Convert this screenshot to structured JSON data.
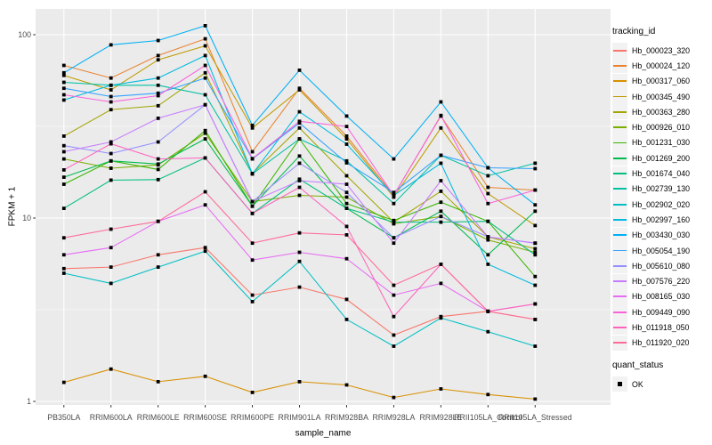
{
  "y_axis": {
    "label": "FPKM + 1",
    "ticks": [
      100,
      10,
      1
    ]
  },
  "x_axis": {
    "label": "sample_name",
    "categories": [
      "PB350LA",
      "RRIM600LA",
      "RRIM600LE",
      "RRIM600SE",
      "RRIM600PE",
      "RRIM901LA",
      "RRIM928BA",
      "RRIM928LA",
      "RRIM928LE",
      "RRII105LA_Control",
      "RRII105LA_Stressed"
    ]
  },
  "legend": {
    "tracking_title": "tracking_id",
    "quant_title": "quant_status",
    "quant_ok_label": "OK"
  },
  "colors": {
    "panel_bg": "#EBEBEB",
    "grid_major": "#FFFFFF",
    "grid_minor": "#F7F7F7",
    "axis_text": "#4D4D4D",
    "tick_mark": "#333333",
    "point": "#000000",
    "legend_key_bg": "#F2F2F2"
  },
  "chart_data": {
    "type": "line",
    "yscale": "log10",
    "ylim": [
      0.95,
      138
    ],
    "grid": true,
    "legend_position": "right",
    "point_shape": "square",
    "quant_status": "OK",
    "x": [
      "PB350LA",
      "RRIM600LA",
      "RRIM600LE",
      "RRIM600SE",
      "RRIM600PE",
      "RRIM901LA",
      "RRIM928BA",
      "RRIM928LA",
      "RRIM928LE",
      "RRII105LA_Control",
      "RRII105LA_Stressed"
    ],
    "series": [
      {
        "name": "Hb_000023_320",
        "color": "#F8766D",
        "values": [
          5.3,
          5.4,
          6.3,
          6.9,
          3.8,
          4.2,
          3.6,
          2.3,
          2.9,
          3.1,
          2.8
        ]
      },
      {
        "name": "Hb_000024_120",
        "color": "#EA8331",
        "values": [
          68,
          58,
          77,
          95,
          23,
          51,
          28,
          13.3,
          36,
          14.7,
          14.2
        ]
      },
      {
        "name": "Hb_000317_060",
        "color": "#D89000",
        "values": [
          1.27,
          1.5,
          1.28,
          1.37,
          1.12,
          1.28,
          1.23,
          1.05,
          1.17,
          1.09,
          1.03
        ]
      },
      {
        "name": "Hb_000345_490",
        "color": "#C09B00",
        "values": [
          60,
          50,
          73,
          87,
          31,
          50,
          27,
          13,
          31,
          13.6,
          9.1
        ]
      },
      {
        "name": "Hb_000363_280",
        "color": "#A3A500",
        "values": [
          28,
          39,
          41,
          62,
          17.5,
          31,
          17,
          9.5,
          14,
          7.9,
          6.8
        ]
      },
      {
        "name": "Hb_000926_010",
        "color": "#7CAE00",
        "values": [
          21,
          18.7,
          19.5,
          29,
          12.3,
          13.3,
          13,
          9.3,
          10.2,
          7.6,
          6.5
        ]
      },
      {
        "name": "Hb_001231_030",
        "color": "#39B600",
        "values": [
          15.3,
          20.5,
          18.4,
          30,
          11.6,
          27,
          12,
          9.7,
          12.2,
          9.6,
          4.8
        ]
      },
      {
        "name": "Hb_001269_200",
        "color": "#00BB4E",
        "values": [
          16.7,
          20.5,
          19.7,
          27,
          11.6,
          21.8,
          11.3,
          7.8,
          10.9,
          6.3,
          10.9
        ]
      },
      {
        "name": "Hb_001674_040",
        "color": "#00BF7D",
        "values": [
          11.3,
          16.1,
          16.2,
          21.3,
          10.6,
          16.3,
          11.3,
          9.5,
          9.5,
          9.6,
          6.3
        ]
      },
      {
        "name": "Hb_002739_130",
        "color": "#00C1A3",
        "values": [
          55,
          53,
          53,
          47,
          17.4,
          27,
          20.5,
          12,
          22,
          17,
          19.9
        ]
      },
      {
        "name": "Hb_002902_020",
        "color": "#00BFC4",
        "values": [
          5.0,
          4.4,
          5.4,
          6.6,
          3.5,
          5.8,
          2.8,
          2.0,
          2.85,
          2.4,
          2.0
        ]
      },
      {
        "name": "Hb_002997_160",
        "color": "#00BAE0",
        "values": [
          44,
          53,
          58,
          77,
          17.4,
          38,
          25.3,
          13.3,
          19.9,
          5.6,
          4.3
        ]
      },
      {
        "name": "Hb_003430_030",
        "color": "#00B0F6",
        "values": [
          62,
          88,
          93,
          112,
          32,
          64,
          36,
          21,
          43,
          18.8,
          11.8
        ]
      },
      {
        "name": "Hb_005054_190",
        "color": "#35A2FF",
        "values": [
          51,
          46,
          48,
          58,
          21,
          33,
          20,
          13.8,
          22,
          18.8,
          18.6
        ]
      },
      {
        "name": "Hb_005610_080",
        "color": "#9590FF",
        "values": [
          24.8,
          22.5,
          26,
          41.5,
          12.3,
          19.9,
          13.8,
          7.8,
          10.2,
          7.9,
          7.3
        ]
      },
      {
        "name": "Hb_007576_220",
        "color": "#C77CFF",
        "values": [
          23,
          26,
          35,
          41.5,
          12.3,
          16,
          15.3,
          7.3,
          16,
          7.9,
          7.3
        ]
      },
      {
        "name": "Hb_008165_030",
        "color": "#E76BF3",
        "values": [
          6.3,
          6.9,
          9.6,
          11.8,
          5.9,
          6.5,
          6.0,
          3.8,
          4.4,
          3.1,
          3.4
        ]
      },
      {
        "name": "Hb_009449_090",
        "color": "#FA62DB",
        "values": [
          47,
          43,
          46.5,
          68,
          21.1,
          33.7,
          31.6,
          13.3,
          36.3,
          12.0,
          14.2
        ]
      },
      {
        "name": "Hb_011918_050",
        "color": "#FF62BC",
        "values": [
          18.3,
          25.4,
          21,
          21.3,
          10.6,
          14.7,
          9.0,
          2.9,
          5.6,
          3.1,
          3.4
        ]
      },
      {
        "name": "Hb_011920_020",
        "color": "#FF6A98",
        "values": [
          7.8,
          8.7,
          9.6,
          13.9,
          7.3,
          8.3,
          8.1,
          4.3,
          5.6,
          3.1,
          2.8
        ]
      }
    ]
  }
}
